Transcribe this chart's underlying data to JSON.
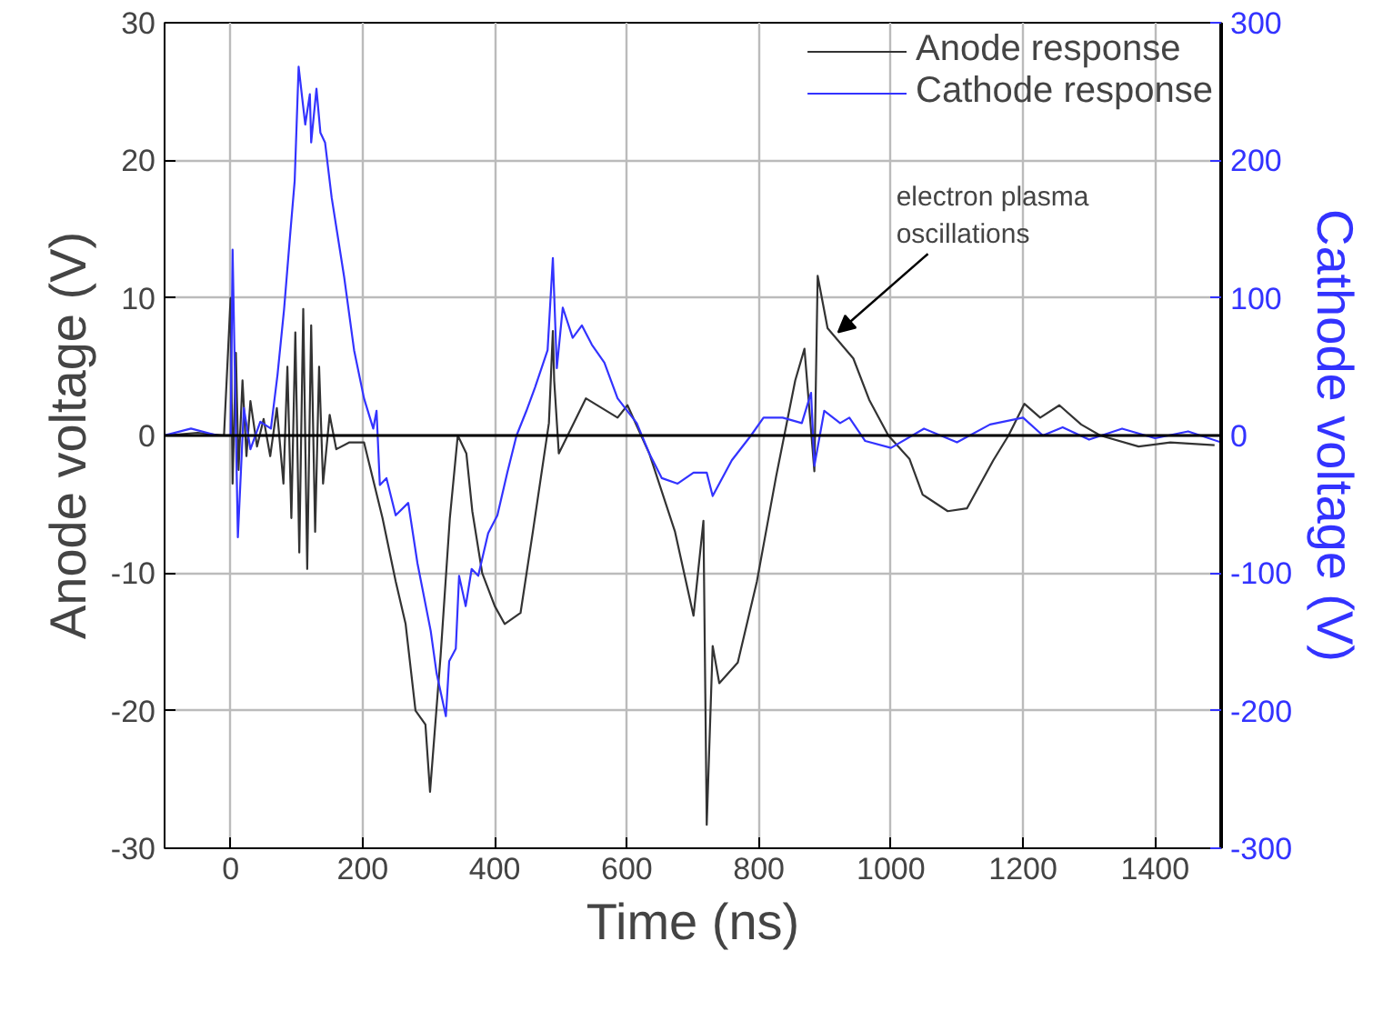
{
  "chart_data": {
    "type": "line",
    "xlabel": "Time (ns)",
    "ylabel": "Anode voltage (V)",
    "y2label": "Cathode voltage (V)",
    "xlim": [
      -100,
      1500
    ],
    "xticks": [
      0,
      200,
      400,
      600,
      800,
      1000,
      1200,
      1400
    ],
    "ylim": [
      -30,
      30
    ],
    "yticks": [
      -30,
      -20,
      -10,
      0,
      10,
      20,
      30
    ],
    "y2lim": [
      -300,
      300
    ],
    "y2ticks": [
      -300,
      -200,
      -100,
      0,
      100,
      200,
      300
    ],
    "grid": true,
    "legend": "top right",
    "marker": "none",
    "line_style": "solid",
    "ref_lines": [
      {
        "axis": "y",
        "value": 0,
        "color": "#000000"
      }
    ],
    "annotations": [
      {
        "text": "electron plasma oscillations",
        "x": 920,
        "y": 7.5
      }
    ],
    "series": [
      {
        "name": "Anode response",
        "color": "#333333",
        "x": [
          -100,
          -50,
          -10,
          0,
          3,
          8,
          12,
          18,
          24,
          30,
          40,
          50,
          60,
          70,
          80,
          86,
          92,
          98,
          104,
          110,
          116,
          122,
          128,
          134,
          140,
          150,
          160,
          180,
          202,
          230,
          250,
          265,
          280,
          295,
          302,
          318,
          332,
          344,
          357,
          366,
          381,
          400,
          415,
          439,
          458,
          482,
          488,
          490,
          497,
          538,
          586,
          601,
          634,
          673,
          701,
          716,
          721,
          730,
          740,
          768,
          797,
          826,
          855,
          869,
          884,
          889,
          904,
          943,
          967,
          996,
          1028,
          1048,
          1086,
          1115,
          1155,
          1178,
          1202,
          1226,
          1255,
          1288,
          1317,
          1375,
          1423,
          1490
        ],
        "values": [
          0,
          0.2,
          0,
          10,
          -3.5,
          6,
          -2.5,
          4,
          -1.5,
          2.5,
          -0.8,
          1.2,
          -1.5,
          2,
          -3.5,
          5,
          -6,
          7.5,
          -8.5,
          9.2,
          -9.7,
          8,
          -7,
          5,
          -3.5,
          1.5,
          -1,
          -0.5,
          -0.5,
          -6,
          -10.6,
          -13.7,
          -20,
          -21,
          -25.9,
          -16,
          -6,
          0,
          -1.3,
          -5.5,
          -10,
          -12.4,
          -13.7,
          -12.9,
          -6.9,
          0.9,
          7.6,
          4,
          -1.3,
          2.7,
          1.3,
          2.2,
          -1.3,
          -7,
          -13.1,
          -6.2,
          -28.3,
          -15.3,
          -18,
          -16.5,
          -10.6,
          -3,
          4,
          6.3,
          -2.6,
          11.6,
          7.8,
          5.6,
          2.6,
          0,
          -1.7,
          -4.3,
          -5.5,
          -5.3,
          -1.8,
          0,
          2.3,
          1.3,
          2.2,
          0.8,
          0,
          -0.8,
          -0.5,
          -0.7
        ]
      },
      {
        "name": "Cathode response",
        "color": "#3333ff",
        "axis": "y2",
        "x": [
          -100,
          -60,
          -20,
          0,
          3,
          11,
          20,
          30,
          45,
          61,
          71,
          81,
          90,
          97,
          103,
          113,
          120,
          122,
          130,
          136,
          143,
          153,
          172,
          187,
          202,
          216,
          221,
          226,
          236,
          250,
          269,
          283,
          303,
          312,
          326,
          331,
          341,
          346,
          356,
          365,
          375,
          390,
          404,
          419,
          433,
          448,
          461,
          480,
          488,
          494,
          503,
          518,
          532,
          547,
          566,
          586,
          615,
          634,
          653,
          677,
          701,
          721,
          730,
          759,
          788,
          807,
          836,
          865,
          879,
          884,
          899,
          923,
          937,
          961,
          1000,
          1050,
          1100,
          1150,
          1200,
          1230,
          1260,
          1300,
          1350,
          1400,
          1450,
          1500
        ],
        "values": [
          0,
          5,
          0,
          0,
          135,
          -74,
          20,
          -10,
          10,
          5,
          44,
          92,
          145,
          185,
          268,
          226,
          248,
          213,
          252,
          220,
          213,
          173,
          115,
          62,
          27,
          5,
          18,
          -36,
          -31,
          -58,
          -49,
          -93,
          -142,
          -173,
          -204,
          -164,
          -155,
          -102,
          -124,
          -97,
          -102,
          -71,
          -58,
          -27,
          0,
          18,
          35,
          62,
          129,
          49,
          93,
          71,
          80,
          66,
          53,
          27,
          9,
          -13,
          -31,
          -35,
          -27,
          -27,
          -44,
          -18,
          0,
          13,
          13,
          9,
          31,
          -22,
          18,
          9,
          13,
          -4,
          -9,
          5,
          -5,
          8,
          13,
          0,
          6,
          -3,
          5,
          -2,
          3,
          -5
        ]
      }
    ]
  }
}
